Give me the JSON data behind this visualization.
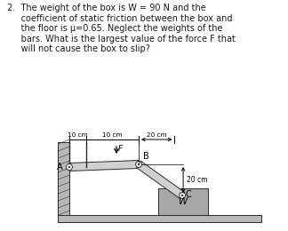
{
  "bg_color": "#ffffff",
  "text_color": "#1a1a1a",
  "problem_text_lines": [
    "2.  The weight of the box is W = 90 N and the",
    "     coefficient of static friction between the box and",
    "     the floor is μ=0.65. Neglect the weights of the",
    "     bars. What is the largest value of the force F that",
    "     will not cause the box to slip?"
  ],
  "dim_label_10cm_1": "10 cm",
  "dim_label_10cm_2": "10 cm",
  "dim_label_20cm_horiz": "20 cm",
  "dim_label_20cm_vert": "20 cm",
  "label_A": "A",
  "label_B": "B",
  "label_C": "C",
  "label_F": "F",
  "label_W": "W",
  "wall_color": "#b8b8b8",
  "bar_color": "#d0d0d0",
  "box_color": "#a8a8a8",
  "line_color": "#2a2a2a",
  "pin_color": "#888888"
}
